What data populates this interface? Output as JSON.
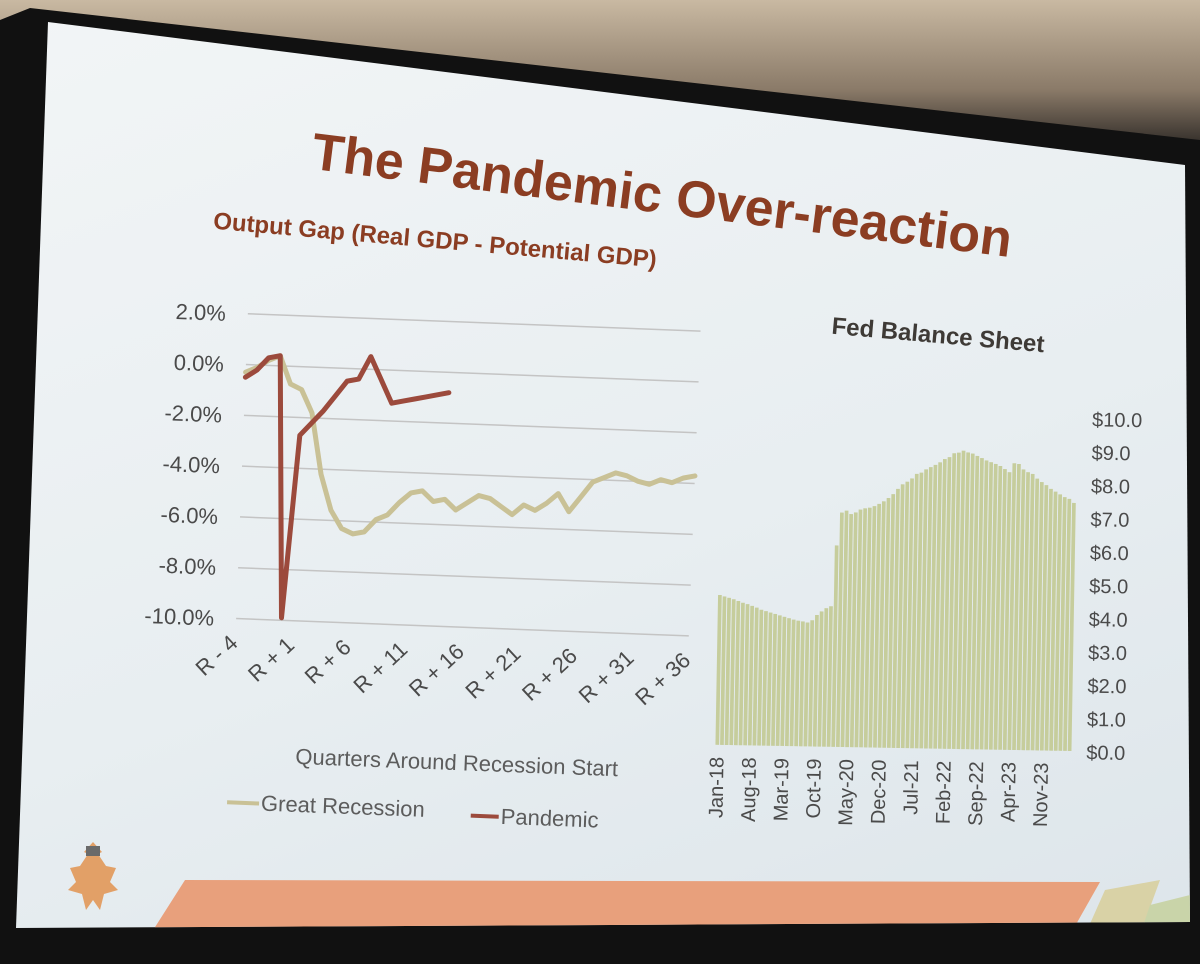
{
  "slide": {
    "title": "The Pandemic Over-reaction"
  },
  "colors": {
    "title": "#8b3d22",
    "great_recession": "#c9c196",
    "pandemic": "#9c4a3c",
    "balance_bars": "#c6cd9c",
    "footer_band": "#e8a07c"
  },
  "chart_data": [
    {
      "type": "line",
      "title": "Output Gap (Real GDP - Potential GDP)",
      "xlabel": "Quarters Around Recession Start",
      "ylabel": "",
      "x_tick_labels": [
        "R - 4",
        "R + 1",
        "R + 6",
        "R + 11",
        "R + 16",
        "R + 21",
        "R + 26",
        "R + 31",
        "R + 36"
      ],
      "y_tick_labels": [
        "2.0%",
        "0.0%",
        "-2.0%",
        "-4.0%",
        "-6.0%",
        "-8.0%",
        "-10.0%"
      ],
      "ylim": [
        -10,
        2
      ],
      "xlim": [
        -4,
        36
      ],
      "grid": true,
      "legend_position": "bottom",
      "series": [
        {
          "name": "Great Recession",
          "color": "#c9c196",
          "x": [
            -4,
            -3,
            -2,
            -1,
            0,
            1,
            2,
            3,
            4,
            5,
            6,
            7,
            8,
            9,
            10,
            11,
            12,
            13,
            14,
            15,
            16,
            17,
            18,
            19,
            20,
            21,
            22,
            23,
            24,
            25,
            26,
            27,
            28,
            29,
            30,
            31,
            32,
            33,
            34,
            35,
            36
          ],
          "values": [
            -0.3,
            -0.1,
            0.2,
            0.4,
            -0.7,
            -0.9,
            -1.8,
            -4.2,
            -5.6,
            -6.3,
            -6.5,
            -6.4,
            -5.9,
            -5.7,
            -5.2,
            -4.8,
            -4.7,
            -5.1,
            -5.0,
            -5.4,
            -5.1,
            -4.8,
            -4.9,
            -5.2,
            -5.5,
            -5.1,
            -5.3,
            -5.0,
            -4.6,
            -5.3,
            -4.7,
            -4.1,
            -3.9,
            -3.7,
            -3.8,
            -4.0,
            -4.1,
            -3.9,
            -4.0,
            -3.8,
            -3.7
          ]
        },
        {
          "name": "Pandemic",
          "color": "#9c4a3c",
          "x": [
            -4,
            -3,
            -2,
            -1,
            0,
            1,
            2,
            3,
            4,
            5,
            6,
            7,
            8,
            9,
            10,
            11,
            12,
            13,
            14
          ],
          "values": [
            -0.5,
            -0.2,
            0.3,
            0.4,
            -9.9,
            -2.7,
            -2.2,
            -1.7,
            -1.1,
            -0.5,
            -0.4,
            0.5,
            -0.4,
            -1.3,
            -1.2,
            -1.1,
            -1.0,
            -0.9,
            -0.8
          ]
        }
      ]
    },
    {
      "type": "bar",
      "title": "Fed Balance Sheet",
      "xlabel": "",
      "ylabel": "",
      "x_tick_labels": [
        "Jan-18",
        "Aug-18",
        "Mar-19",
        "Oct-19",
        "May-20",
        "Dec-20",
        "Jul-21",
        "Feb-22",
        "Sep-22",
        "Apr-23",
        "Nov-23"
      ],
      "y_tick_labels": [
        "$10.0",
        "$9.0",
        "$8.0",
        "$7.0",
        "$6.0",
        "$5.0",
        "$4.0",
        "$3.0",
        "$2.0",
        "$1.0",
        "$0.0"
      ],
      "y_axis_position": "right",
      "ylim": [
        0,
        10
      ],
      "grid": false,
      "start_month": "Jan-18",
      "color": "#c6cd9c",
      "values": [
        4.5,
        4.46,
        4.42,
        4.38,
        4.33,
        4.28,
        4.24,
        4.19,
        4.14,
        4.08,
        4.04,
        4.0,
        3.96,
        3.92,
        3.88,
        3.84,
        3.8,
        3.77,
        3.75,
        3.72,
        3.79,
        3.95,
        4.06,
        4.16,
        4.22,
        6.05,
        7.04,
        7.1,
        7.0,
        7.05,
        7.14,
        7.18,
        7.2,
        7.25,
        7.32,
        7.4,
        7.5,
        7.62,
        7.78,
        7.92,
        8.0,
        8.1,
        8.24,
        8.28,
        8.38,
        8.45,
        8.52,
        8.6,
        8.7,
        8.76,
        8.88,
        8.9,
        8.96,
        8.91,
        8.88,
        8.81,
        8.75,
        8.68,
        8.63,
        8.58,
        8.52,
        8.43,
        8.34,
        8.61,
        8.59,
        8.43,
        8.35,
        8.3,
        8.16,
        8.06,
        7.97,
        7.86,
        7.78,
        7.7,
        7.62,
        7.57,
        7.45
      ]
    }
  ]
}
